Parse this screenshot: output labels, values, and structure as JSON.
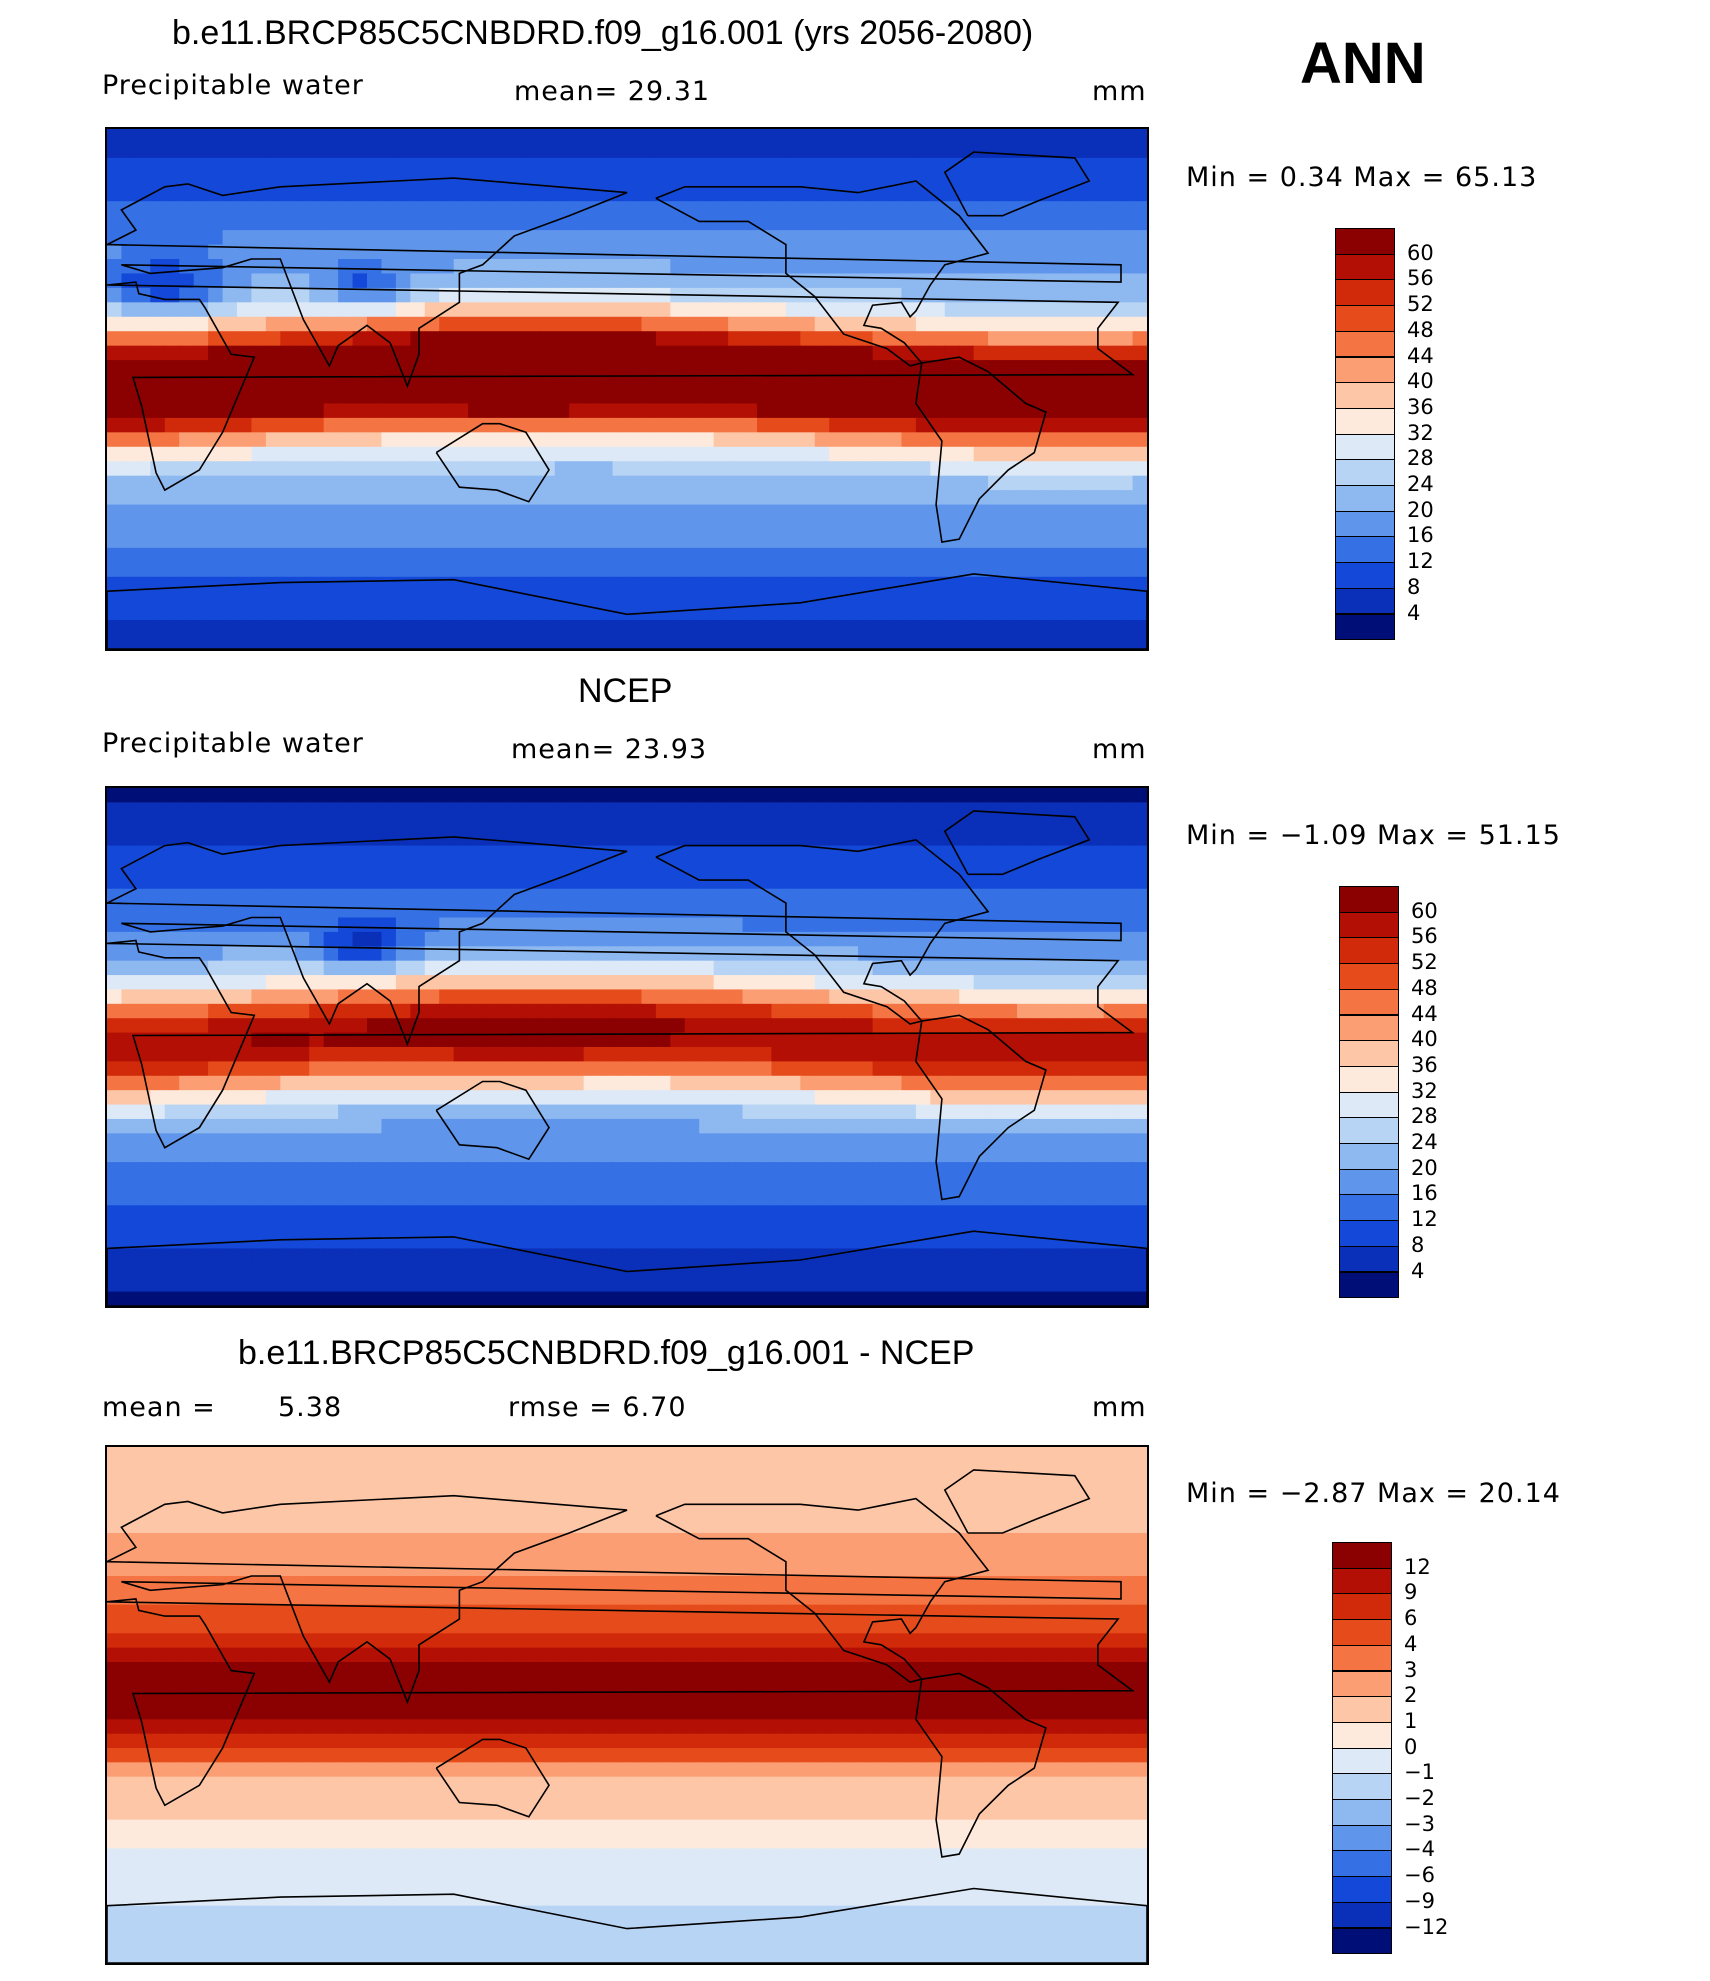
{
  "header": {
    "season": "ANN"
  },
  "panels": [
    {
      "title": "b.e11.BRCP85C5CNBDRD.f09_g16.001 (yrs 2056-2080)",
      "variable": "Precipitable water",
      "stat1": "mean=   29.31",
      "stat2": "",
      "units": "mm",
      "minmax": "Min =     0.34  Max =    65.13",
      "colorbar": {
        "levels": [
          "60",
          "56",
          "52",
          "48",
          "44",
          "40",
          "36",
          "32",
          "28",
          "24",
          "20",
          "16",
          "12",
          "8",
          "4"
        ],
        "colors": [
          "#8b0000",
          "#b30f05",
          "#d12a0a",
          "#e64c1b",
          "#f47443",
          "#fb9e74",
          "#fdc6a6",
          "#feeadc",
          "#dde9f6",
          "#b8d4f4",
          "#8eb8f0",
          "#5f95ea",
          "#3570e4",
          "#1448d8",
          "#0a2fb8",
          "#000e78"
        ]
      },
      "mean_value": 29.31,
      "min": 0.34,
      "max": 65.13
    },
    {
      "title": "NCEP",
      "variable": "Precipitable water",
      "stat1": "mean=   23.93",
      "stat2": "",
      "units": "mm",
      "minmax": "Min =   −1.09  Max =    51.15",
      "colorbar": {
        "levels": [
          "60",
          "56",
          "52",
          "48",
          "44",
          "40",
          "36",
          "32",
          "28",
          "24",
          "20",
          "16",
          "12",
          "8",
          "4"
        ],
        "colors": [
          "#8b0000",
          "#b30f05",
          "#d12a0a",
          "#e64c1b",
          "#f47443",
          "#fb9e74",
          "#fdc6a6",
          "#feeadc",
          "#dde9f6",
          "#b8d4f4",
          "#8eb8f0",
          "#5f95ea",
          "#3570e4",
          "#1448d8",
          "#0a2fb8",
          "#000e78"
        ]
      },
      "mean_value": 23.93,
      "min": -1.09,
      "max": 51.15
    },
    {
      "title": "b.e11.BRCP85C5CNBDRD.f09_g16.001 - NCEP",
      "variable": "mean =",
      "stat1": "5.38",
      "stat2": "rmse =     6.70",
      "units": "mm",
      "minmax": "Min =   −2.87  Max =    20.14",
      "colorbar": {
        "levels": [
          "12",
          "9",
          "6",
          "4",
          "3",
          "2",
          "1",
          "0",
          "−1",
          "−2",
          "−3",
          "−4",
          "−6",
          "−9",
          "−12"
        ],
        "colors": [
          "#8b0000",
          "#b30f05",
          "#d12a0a",
          "#e64c1b",
          "#f47443",
          "#fb9e74",
          "#fdc6a6",
          "#feeadc",
          "#dde9f6",
          "#b8d4f4",
          "#8eb8f0",
          "#5f95ea",
          "#3570e4",
          "#1448d8",
          "#0a2fb8",
          "#000e78"
        ]
      },
      "mean_value": 5.38,
      "rmse": 6.7,
      "min": -2.87,
      "max": 20.14
    }
  ],
  "chart_data": [
    {
      "type": "heatmap",
      "title": "b.e11.BRCP85C5CNBDRD.f09_g16.001 (yrs 2056-2080)",
      "variable": "Precipitable water",
      "units": "mm",
      "mean": 29.31,
      "min": 0.34,
      "max": 65.13,
      "contour_levels": [
        4,
        8,
        12,
        16,
        20,
        24,
        28,
        32,
        36,
        40,
        44,
        48,
        52,
        56,
        60
      ]
    },
    {
      "type": "heatmap",
      "title": "NCEP",
      "variable": "Precipitable water",
      "units": "mm",
      "mean": 23.93,
      "min": -1.09,
      "max": 51.15,
      "contour_levels": [
        4,
        8,
        12,
        16,
        20,
        24,
        28,
        32,
        36,
        40,
        44,
        48,
        52,
        56,
        60
      ]
    },
    {
      "type": "heatmap",
      "title": "b.e11.BRCP85C5CNBDRD.f09_g16.001 - NCEP",
      "units": "mm",
      "mean": 5.38,
      "rmse": 6.7,
      "min": -2.87,
      "max": 20.14,
      "contour_levels": [
        -12,
        -9,
        -6,
        -4,
        -3,
        -2,
        -1,
        0,
        1,
        2,
        3,
        4,
        6,
        9,
        12
      ]
    }
  ]
}
